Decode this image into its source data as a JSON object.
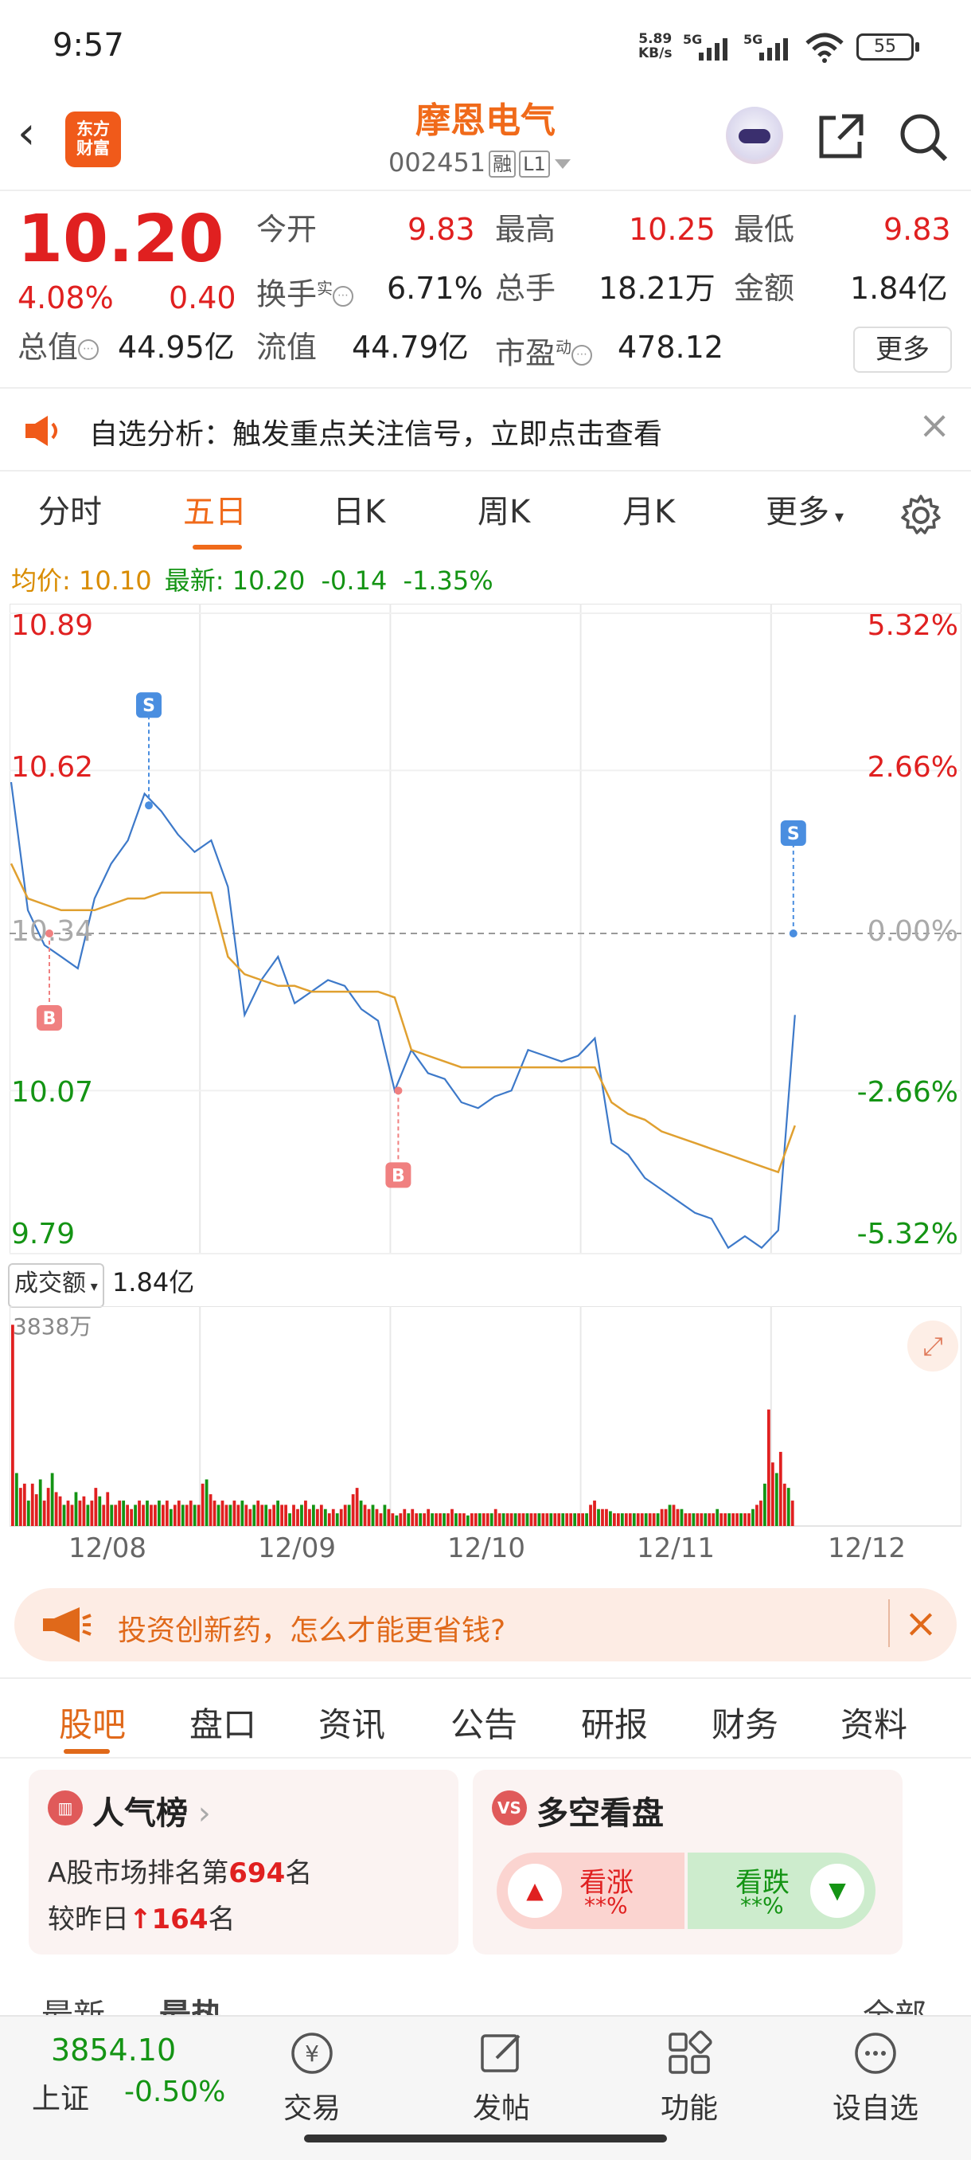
{
  "status_bar": {
    "time": "9:57",
    "net_speed": "5.89",
    "net_unit": "KB/s",
    "signal1": "5G",
    "signal2": "5G",
    "battery": "55"
  },
  "header": {
    "logo_line1": "东方",
    "logo_line2": "财富",
    "title": "摩恩电气",
    "code": "002451",
    "tag_margin": "融",
    "tag_level": "L1"
  },
  "quote": {
    "price": "10.20",
    "change_pct": "4.08%",
    "change_amt": "0.40",
    "open_label": "今开",
    "open": "9.83",
    "high_label": "最高",
    "high": "10.25",
    "low_label": "最低",
    "low": "9.83",
    "turnover_label": "换手",
    "turnover_sup": "实",
    "turnover": "6.71%",
    "volume_label": "总手",
    "volume": "18.21万",
    "amount_label": "金额",
    "amount": "1.84亿",
    "mktcap_label": "总值",
    "mktcap": "44.95亿",
    "float_label": "流值",
    "float": "44.79亿",
    "pe_label": "市盈",
    "pe_sup": "动",
    "pe": "478.12",
    "more": "更多"
  },
  "notice": {
    "text": "自选分析：触发重点关注信号，立即点击查看"
  },
  "tabs": [
    {
      "label": "分时"
    },
    {
      "label": "五日"
    },
    {
      "label": "日K"
    },
    {
      "label": "周K"
    },
    {
      "label": "月K"
    },
    {
      "label": "更多"
    }
  ],
  "avg_bar": {
    "avg_label": "均价:",
    "avg": "10.10",
    "last_label": "最新:",
    "last": "10.20",
    "chg": "-0.14",
    "chg_pct": "-1.35%"
  },
  "chart_data": {
    "type": "line",
    "days": [
      "12/08",
      "12/09",
      "12/10",
      "12/11",
      "12/12"
    ],
    "y_left_labels": [
      "10.89",
      "10.62",
      "10.34",
      "10.07",
      "9.79"
    ],
    "y_right_labels": [
      "5.32%",
      "2.66%",
      "0.00%",
      "-2.66%",
      "-5.32%"
    ],
    "ylim": [
      9.79,
      10.89
    ],
    "prev_close": 10.34,
    "series": [
      {
        "values": [
          10.6,
          10.38,
          10.32,
          10.3,
          10.28,
          10.4,
          10.46,
          10.5,
          10.58,
          10.55,
          10.51,
          10.48,
          10.5,
          10.42,
          10.2,
          10.26,
          10.3,
          10.22,
          10.24,
          10.26,
          10.25,
          10.21,
          10.19,
          10.07,
          10.14,
          10.1,
          10.09,
          10.05,
          10.04,
          10.06,
          10.07,
          10.14,
          10.13,
          10.12,
          10.13,
          10.16,
          9.98,
          9.96,
          9.92,
          9.9,
          9.88,
          9.86,
          9.85,
          9.8,
          9.82,
          9.8,
          9.83,
          10.2
        ]
      },
      {
        "values": [
          10.46,
          10.4,
          10.39,
          10.38,
          10.38,
          10.38,
          10.39,
          10.4,
          10.4,
          10.41,
          10.41,
          10.41,
          10.41,
          10.3,
          10.27,
          10.26,
          10.25,
          10.25,
          10.24,
          10.24,
          10.24,
          10.24,
          10.24,
          10.23,
          10.14,
          10.13,
          10.12,
          10.11,
          10.11,
          10.11,
          10.11,
          10.11,
          10.11,
          10.11,
          10.11,
          10.11,
          10.05,
          10.03,
          10.02,
          10.0,
          9.99,
          9.98,
          9.97,
          9.96,
          9.95,
          9.94,
          9.93,
          10.01
        ]
      }
    ],
    "markers": [
      {
        "label": "S",
        "day": 0,
        "value": 10.56
      },
      {
        "label": "B",
        "day": 0,
        "value": 10.34
      },
      {
        "label": "B",
        "day": 2,
        "value": 10.07
      },
      {
        "label": "S",
        "day": 4,
        "value": 10.34
      }
    ]
  },
  "volume": {
    "label": "成交额",
    "total": "1.84亿",
    "max_label": "3838万",
    "values": [
      0.95,
      0.25,
      0.18,
      0.2,
      0.12,
      0.2,
      0.15,
      0.22,
      0.12,
      0.18,
      0.25,
      0.16,
      0.14,
      0.1,
      0.12,
      0.1,
      0.16,
      0.12,
      0.14,
      0.1,
      0.12,
      0.18,
      0.14,
      0.1,
      0.16,
      0.1,
      0.1,
      0.12,
      0.12,
      0.1,
      0.08,
      0.1,
      0.12,
      0.1,
      0.12,
      0.1,
      0.1,
      0.12,
      0.1,
      0.12,
      0.08,
      0.1,
      0.12,
      0.1,
      0.1,
      0.12,
      0.1,
      0.1,
      0.2,
      0.22,
      0.15,
      0.12,
      0.1,
      0.12,
      0.1,
      0.1,
      0.12,
      0.1,
      0.12,
      0.1,
      0.08,
      0.1,
      0.12,
      0.1,
      0.1,
      0.08,
      0.1,
      0.12,
      0.1,
      0.1,
      0.06,
      0.1,
      0.08,
      0.1,
      0.12,
      0.08,
      0.1,
      0.08,
      0.1,
      0.08,
      0.06,
      0.08,
      0.06,
      0.08,
      0.1,
      0.1,
      0.15,
      0.18,
      0.12,
      0.1,
      0.08,
      0.1,
      0.08,
      0.06,
      0.1,
      0.08,
      0.06,
      0.05,
      0.06,
      0.08,
      0.06,
      0.08,
      0.06,
      0.06,
      0.06,
      0.08,
      0.06,
      0.06,
      0.06,
      0.06,
      0.06,
      0.08,
      0.06,
      0.06,
      0.06,
      0.05,
      0.06,
      0.06,
      0.06,
      0.06,
      0.06,
      0.06,
      0.08,
      0.06,
      0.06,
      0.06,
      0.06,
      0.06,
      0.06,
      0.06,
      0.06,
      0.06,
      0.06,
      0.06,
      0.06,
      0.06,
      0.06,
      0.06,
      0.06,
      0.06,
      0.06,
      0.06,
      0.06,
      0.06,
      0.06,
      0.06,
      0.1,
      0.12,
      0.08,
      0.08,
      0.08,
      0.07,
      0.06,
      0.06,
      0.06,
      0.06,
      0.06,
      0.06,
      0.06,
      0.06,
      0.06,
      0.06,
      0.06,
      0.06,
      0.08,
      0.08,
      0.1,
      0.1,
      0.08,
      0.08,
      0.06,
      0.06,
      0.06,
      0.06,
      0.06,
      0.06,
      0.06,
      0.06,
      0.08,
      0.06,
      0.06,
      0.06,
      0.06,
      0.06,
      0.06,
      0.06,
      0.06,
      0.08,
      0.1,
      0.12,
      0.2,
      0.55,
      0.3,
      0.25,
      0.35,
      0.2,
      0.18,
      0.12
    ]
  },
  "dates": [
    "12/08",
    "12/09",
    "12/10",
    "12/11",
    "12/12"
  ],
  "banner": {
    "text": "投资创新药，怎么才能更省钱?"
  },
  "bottom_tabs": [
    {
      "label": "股吧"
    },
    {
      "label": "盘口"
    },
    {
      "label": "资讯"
    },
    {
      "label": "公告"
    },
    {
      "label": "研报"
    },
    {
      "label": "财务"
    },
    {
      "label": "资料"
    }
  ],
  "popularity": {
    "title": "人气榜",
    "line1_pre": "A股市场排名第",
    "rank": "694",
    "line1_post": "名",
    "line2_pre": "较昨日",
    "delta": "164",
    "line2_post": "名"
  },
  "sentiment": {
    "title": "多空看盘",
    "bull_label": "看涨",
    "bull_val": "**%",
    "bear_label": "看跌",
    "bear_val": "**%"
  },
  "partial_row": {
    "a": "最新",
    "b": "最热",
    "c": "全部"
  },
  "bottom_nav": {
    "index_value": "3854.10",
    "index_name": "上证",
    "index_change": "-0.50%",
    "items": [
      {
        "label": "交易"
      },
      {
        "label": "发帖"
      },
      {
        "label": "功能"
      },
      {
        "label": "设自选"
      }
    ]
  },
  "colors": {
    "up": "#e02020",
    "down": "#149414",
    "accent": "#f06a1a",
    "price_line": "#3d79c9",
    "avg_line": "#e0a030"
  }
}
